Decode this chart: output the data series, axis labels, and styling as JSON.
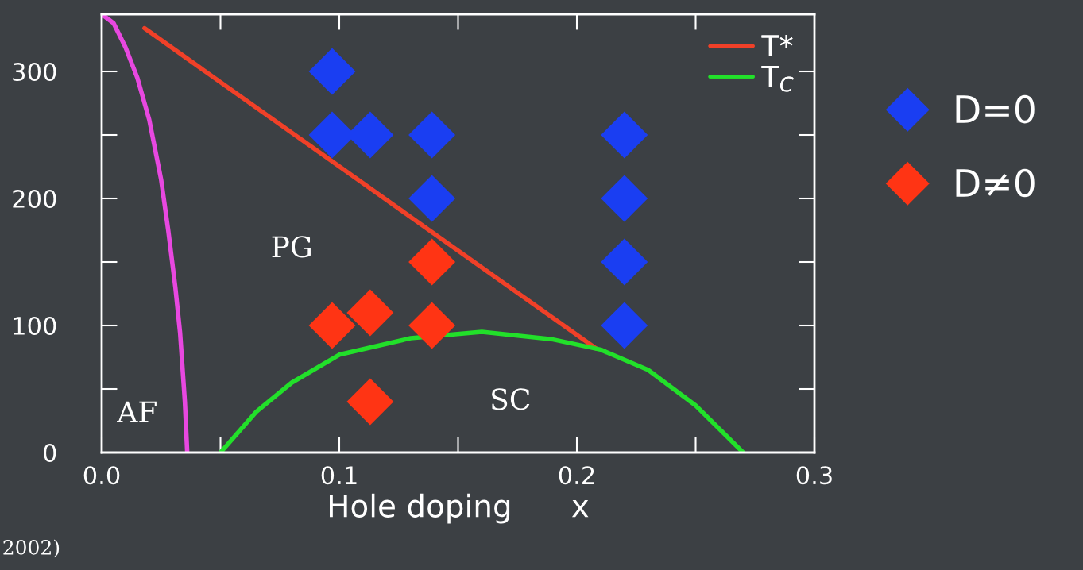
{
  "chart_data": {
    "type": "scatter",
    "xlabel": "Hole doping      x",
    "xlim": [
      0,
      0.3
    ],
    "ylim": [
      0,
      345
    ],
    "xticks": [
      {
        "value": 0,
        "label": "0.0"
      },
      {
        "value": 0.1,
        "label": "0.1"
      },
      {
        "value": 0.2,
        "label": "0.2"
      },
      {
        "value": 0.3,
        "label": "0.3"
      }
    ],
    "yticks": [
      0,
      100,
      200,
      300
    ],
    "grid": false,
    "legend": "top right",
    "series": [
      {
        "type": "line",
        "marker": "none",
        "color": "#e848e0",
        "x": [
          0,
          0.005,
          0.01,
          0.015,
          0.02,
          0.025,
          0.028,
          0.031,
          0.033,
          0.035,
          0.036
        ],
        "values": [
          345,
          338,
          319,
          295,
          262,
          215,
          175,
          130,
          94,
          40,
          0
        ]
      },
      {
        "type": "line",
        "marker": "none",
        "name": "T*",
        "color": "#f04028",
        "x": [
          0.018,
          0.208
        ],
        "values": [
          334,
          82
        ]
      },
      {
        "type": "line",
        "marker": "none",
        "name": "T$_{C}$",
        "color": "#22e02a",
        "x": [
          0.05,
          0.065,
          0.08,
          0.1,
          0.13,
          0.16,
          0.19,
          0.21,
          0.23,
          0.25,
          0.27
        ],
        "values": [
          0,
          32,
          55,
          77,
          90,
          95,
          89,
          81,
          65,
          37,
          0
        ]
      },
      {
        "marker": "diamond",
        "name": "D=0",
        "color": "#1a3ef2",
        "x": [
          0.097,
          0.097,
          0.113,
          0.139,
          0.139,
          0.22,
          0.22,
          0.22,
          0.22
        ],
        "values": [
          300,
          250,
          250,
          250,
          200,
          250,
          200,
          150,
          100
        ]
      },
      {
        "marker": "diamond",
        "name": "D≠0",
        "color": "#ff3414",
        "x": [
          0.097,
          0.113,
          0.139,
          0.139,
          0.113
        ],
        "values": [
          100,
          110,
          150,
          100,
          40
        ]
      }
    ],
    "annotations": [
      "PG",
      "AF",
      "SC",
      "2002)"
    ]
  }
}
